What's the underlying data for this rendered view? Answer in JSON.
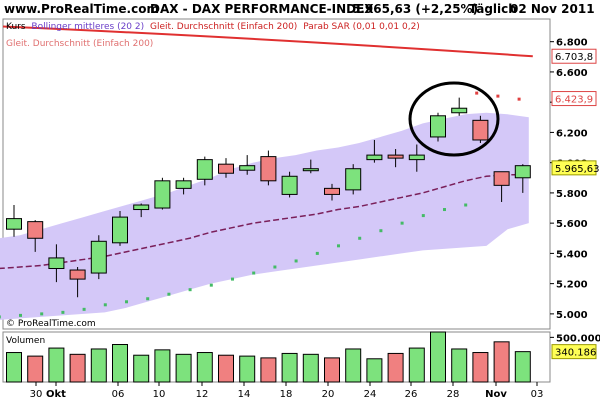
{
  "header": {
    "site": "www.ProRealTime.com",
    "instrument": "DAX - DAX PERFORMANCE-INDEX",
    "last_change": "5.965,63 (+2,25%)",
    "period": "Täglich",
    "date": "02 Nov 2011"
  },
  "legend": {
    "kurs": "Kurs",
    "bollinger": "Bollinger mittleres (20 2)",
    "ma_top": "Gleit. Durchschnitt (Einfach 200)",
    "sar": "Parab SAR (0,01 0,01 0,2)",
    "ma_sub": "Gleit. Durchschnitt (Einfach 200)"
  },
  "copyright": "© ProRealTime.com",
  "volume_label": "Volumen",
  "colors": {
    "up": "#7de27d",
    "down": "#f08080",
    "band": "#d4c8f8",
    "ma200": "#e03030",
    "sar": "#44bb66",
    "mid": "#7a1f5a",
    "badge_last": "#ffff55"
  },
  "chart_data": [
    {
      "type": "candlestick",
      "title": "DAX - DAX PERFORMANCE-INDEX",
      "ylim": [
        4900,
        6950
      ],
      "y_ticks": [
        "6.800",
        "6.600",
        "6.400",
        "6.200",
        "6.000",
        "5.800",
        "5.600",
        "5.400",
        "5.200",
        "5.000"
      ],
      "x_ticks": [
        "30",
        "Okt",
        "06",
        "10",
        "12",
        "14",
        "18",
        "20",
        "24",
        "26",
        "28",
        "Nov",
        "03"
      ],
      "price_badges": {
        "ma200": "6.703,8",
        "sar": "6.423,9",
        "last": "5.965,63"
      },
      "candles": [
        {
          "open": 5560,
          "high": 5720,
          "low": 5510,
          "close": 5630
        },
        {
          "open": 5610,
          "high": 5620,
          "low": 5410,
          "close": 5500
        },
        {
          "open": 5300,
          "high": 5460,
          "low": 5210,
          "close": 5370
        },
        {
          "open": 5290,
          "high": 5310,
          "low": 5110,
          "close": 5230
        },
        {
          "open": 5270,
          "high": 5520,
          "low": 5230,
          "close": 5480
        },
        {
          "open": 5470,
          "high": 5680,
          "low": 5450,
          "close": 5640
        },
        {
          "open": 5690,
          "high": 5730,
          "low": 5640,
          "close": 5720
        },
        {
          "open": 5700,
          "high": 5900,
          "low": 5690,
          "close": 5880
        },
        {
          "open": 5830,
          "high": 5900,
          "low": 5790,
          "close": 5880
        },
        {
          "open": 5890,
          "high": 6040,
          "low": 5850,
          "close": 6020
        },
        {
          "open": 5990,
          "high": 6030,
          "low": 5900,
          "close": 5930
        },
        {
          "open": 5950,
          "high": 6050,
          "low": 5920,
          "close": 5980
        },
        {
          "open": 6040,
          "high": 6080,
          "low": 5850,
          "close": 5880
        },
        {
          "open": 5790,
          "high": 5940,
          "low": 5770,
          "close": 5910
        },
        {
          "open": 5960,
          "high": 6020,
          "low": 5930,
          "close": 5960
        },
        {
          "open": 5830,
          "high": 5860,
          "low": 5750,
          "close": 5790
        },
        {
          "open": 5820,
          "high": 5990,
          "low": 5790,
          "close": 5960
        },
        {
          "open": 6020,
          "high": 6150,
          "low": 6000,
          "close": 6050
        },
        {
          "open": 6050,
          "high": 6090,
          "low": 5970,
          "close": 6030
        },
        {
          "open": 6020,
          "high": 6120,
          "low": 5940,
          "close": 6050
        },
        {
          "open": 6170,
          "high": 6330,
          "low": 6140,
          "close": 6310
        },
        {
          "open": 6330,
          "high": 6430,
          "low": 6310,
          "close": 6360
        },
        {
          "open": 6280,
          "high": 6310,
          "low": 6130,
          "close": 6150
        },
        {
          "open": 5940,
          "high": 5940,
          "low": 5740,
          "close": 5850
        },
        {
          "open": 5900,
          "high": 5990,
          "low": 5800,
          "close": 5980
        }
      ],
      "volume": {
        "y_ticks": [
          "500.000"
        ],
        "ylim": [
          0,
          560000
        ],
        "last_value": "340.186",
        "values": [
          330000,
          290000,
          380000,
          310000,
          370000,
          420000,
          300000,
          360000,
          310000,
          330000,
          300000,
          290000,
          270000,
          320000,
          310000,
          270000,
          370000,
          260000,
          320000,
          380000,
          560000,
          370000,
          330000,
          450000,
          340000
        ]
      }
    }
  ]
}
